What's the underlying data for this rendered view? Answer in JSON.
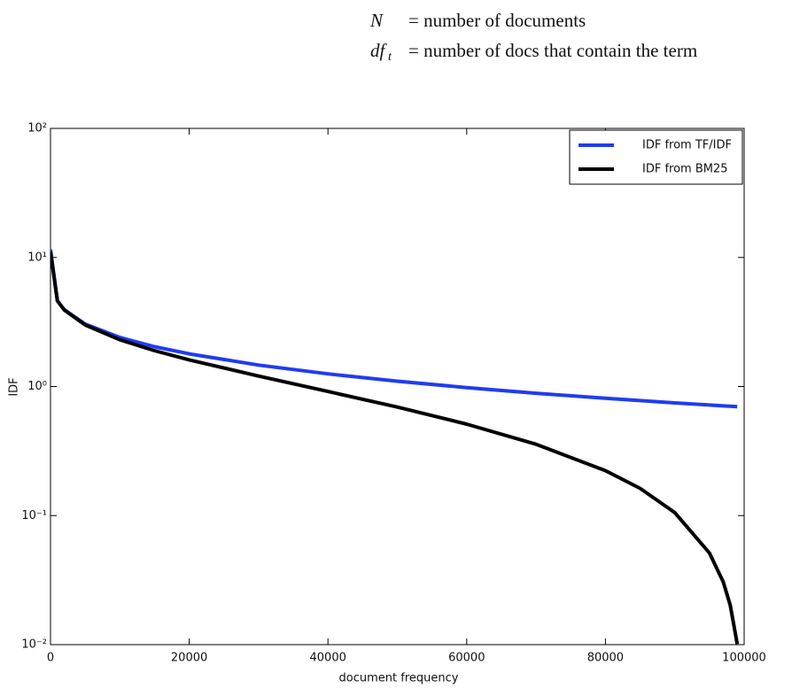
{
  "chart_data": {
    "type": "line",
    "annotations": [
      {
        "symbol": "N",
        "text": "= number of documents"
      },
      {
        "symbol": "df",
        "subscript": "t",
        "text": "= number of docs that contain the term"
      }
    ],
    "xlabel": "document frequency",
    "ylabel": "IDF",
    "x": [
      1,
      1000,
      2000,
      5000,
      10000,
      15000,
      20000,
      30000,
      40000,
      50000,
      60000,
      70000,
      80000,
      85000,
      90000,
      95000,
      97000,
      98000,
      99000
    ],
    "series": [
      {
        "name": "IDF from TF/IDF",
        "color": "#1f3cf2",
        "values": [
          11.51,
          4.615,
          3.932,
          3.045,
          2.398,
          2.037,
          1.792,
          1.466,
          1.253,
          1.099,
          0.981,
          0.887,
          0.811,
          0.778,
          0.747,
          0.719,
          0.708,
          0.703,
          0.698
        ]
      },
      {
        "name": "IDF from BM25",
        "color": "#000000",
        "values": [
          11.11,
          4.605,
          3.912,
          2.996,
          2.303,
          1.897,
          1.609,
          1.204,
          0.916,
          0.693,
          0.511,
          0.357,
          0.223,
          0.1625,
          0.1054,
          0.0513,
          0.0305,
          0.0202,
          0.0101
        ]
      }
    ],
    "xlim": [
      0,
      100000
    ],
    "xticks": [
      0,
      20000,
      40000,
      60000,
      80000,
      100000
    ],
    "ylim": [
      0.01,
      100
    ],
    "log_y": true,
    "yticks": [
      {
        "value": 0.01,
        "label": "10⁻²"
      },
      {
        "value": 0.1,
        "label": "10⁻¹"
      },
      {
        "value": 1,
        "label": "10⁰"
      },
      {
        "value": 10,
        "label": "10¹"
      },
      {
        "value": 100,
        "label": "10²"
      }
    ],
    "legend": "upper right"
  }
}
